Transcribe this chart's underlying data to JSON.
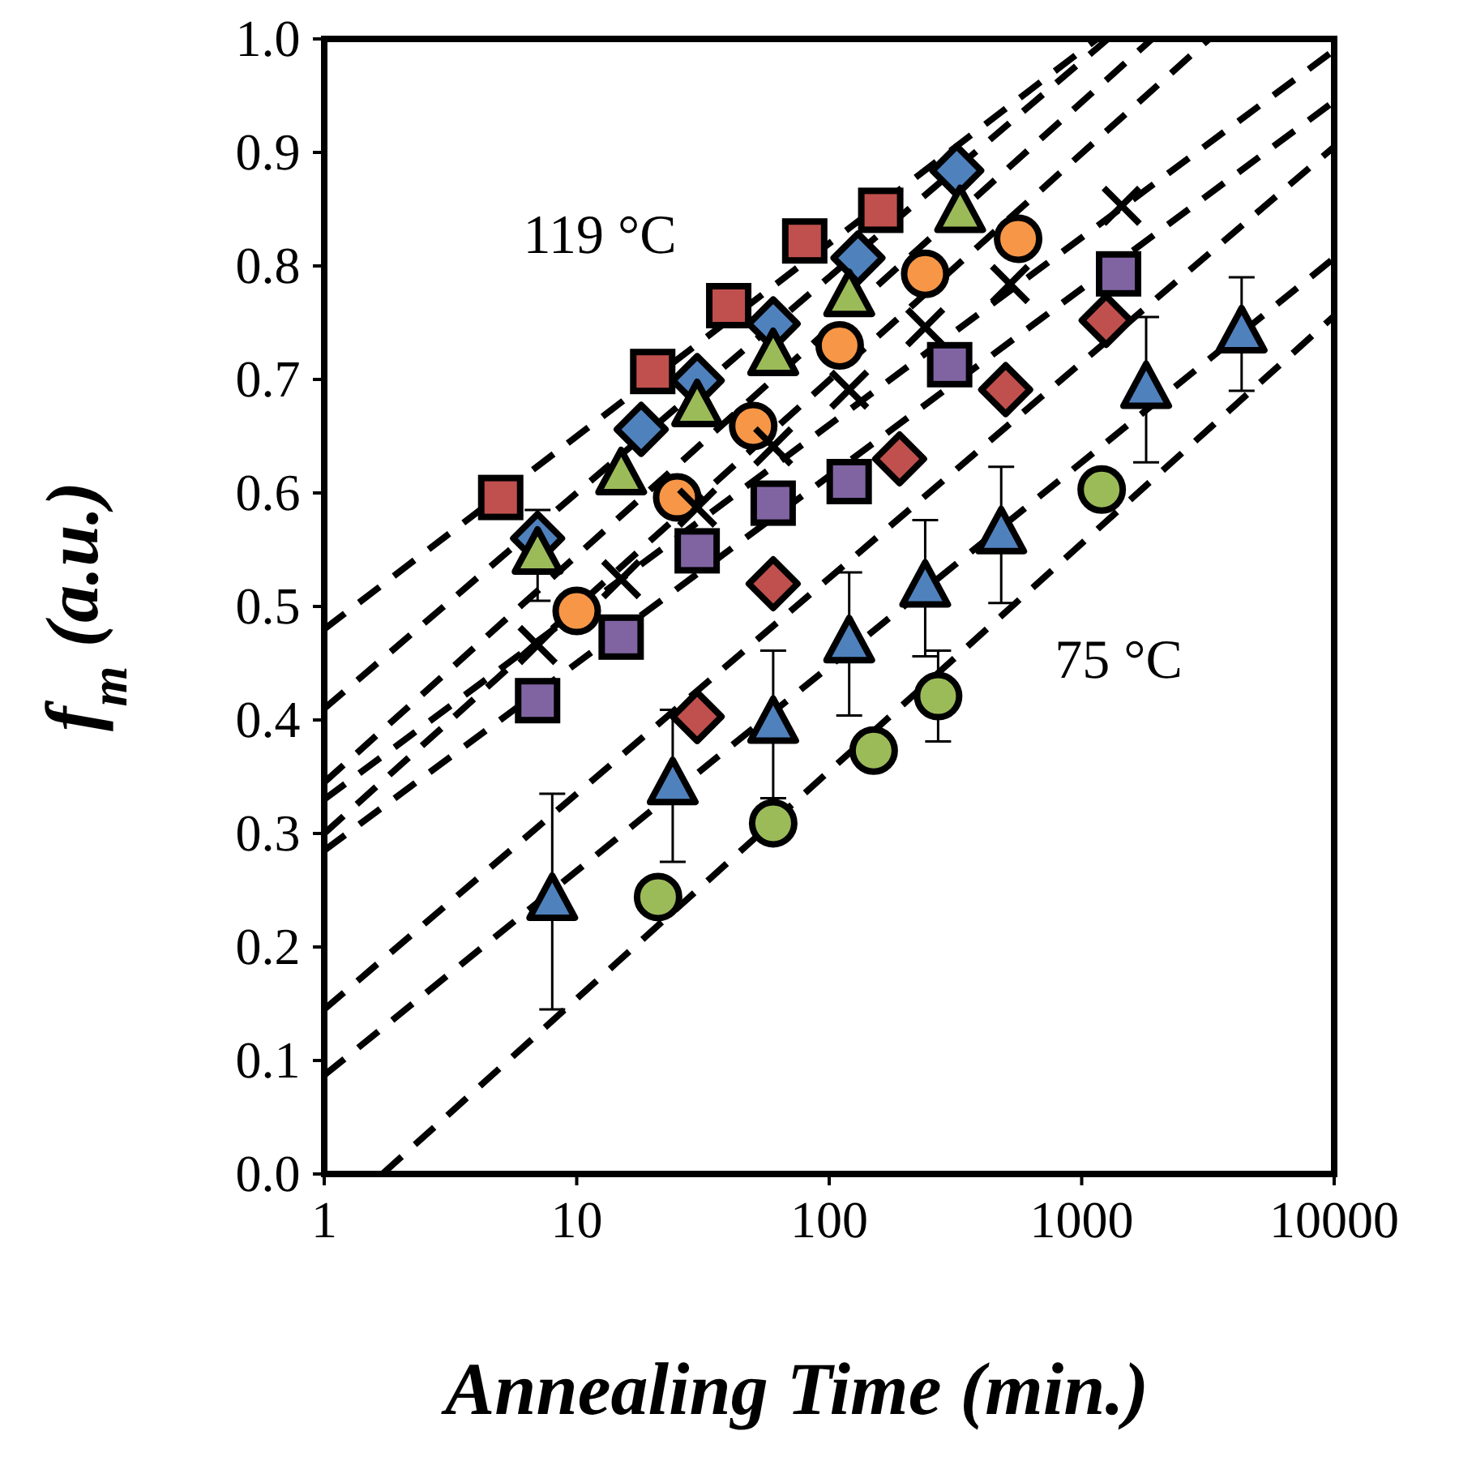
{
  "chart_data": {
    "type": "scatter",
    "xlabel": "Annealing Time (min.)",
    "ylabel": "f$_{m}$ (a.u.)",
    "log": "x",
    "grid": false,
    "xlim": [
      1,
      10000
    ],
    "xticks": [
      1,
      10,
      100,
      1000,
      10000
    ],
    "ylim": [
      0,
      1
    ],
    "yticks": [
      {
        "value": 0,
        "label": "0.0"
      },
      {
        "value": 0.1,
        "label": "0.1"
      },
      {
        "value": 0.2,
        "label": "0.2"
      },
      {
        "value": 0.3,
        "label": "0.3"
      },
      {
        "value": 0.4,
        "label": "0.4"
      },
      {
        "value": 0.5,
        "label": "0.5"
      },
      {
        "value": 0.6,
        "label": "0.6"
      },
      {
        "value": 0.7,
        "label": "0.7"
      },
      {
        "value": 0.8,
        "label": "0.8"
      },
      {
        "value": 0.9,
        "label": "0.9"
      },
      {
        "value": 1,
        "label": "1.0"
      }
    ],
    "annotations": [
      "119 °C",
      "75 °C"
    ],
    "series": [
      {
        "type": "line",
        "color": "#000000",
        "line_style": "dashed",
        "marker": "none",
        "x": [
          1,
          1150
        ],
        "values": [
          0.48,
          1.0
        ]
      },
      {
        "type": "line",
        "color": "#000000",
        "line_style": "dashed",
        "marker": "none",
        "x": [
          1,
          1270
        ],
        "values": [
          0.41,
          1.0
        ]
      },
      {
        "type": "line",
        "color": "#000000",
        "line_style": "dashed",
        "marker": "none",
        "x": [
          1,
          1900
        ],
        "values": [
          0.345,
          1.0
        ]
      },
      {
        "type": "line",
        "color": "#000000",
        "line_style": "dashed",
        "marker": "none",
        "x": [
          1,
          10000
        ],
        "values": [
          0.33,
          0.99
        ]
      },
      {
        "type": "line",
        "color": "#000000",
        "line_style": "dashed",
        "marker": "none",
        "x": [
          1,
          3200
        ],
        "values": [
          0.3,
          1.0
        ]
      },
      {
        "type": "line",
        "color": "#000000",
        "line_style": "dashed",
        "marker": "none",
        "x": [
          1,
          10000
        ],
        "values": [
          0.285,
          0.945
        ]
      },
      {
        "type": "line",
        "color": "#000000",
        "line_style": "dashed",
        "marker": "none",
        "x": [
          1,
          10000
        ],
        "values": [
          0.145,
          0.905
        ]
      },
      {
        "type": "line",
        "color": "#000000",
        "line_style": "dashed",
        "marker": "none",
        "x": [
          1,
          10000
        ],
        "values": [
          0.087,
          0.807
        ]
      },
      {
        "type": "line",
        "color": "#000000",
        "line_style": "dashed",
        "marker": "none",
        "x": [
          1.7,
          10000
        ],
        "values": [
          0,
          0.756
        ]
      },
      {
        "color": "#c0504d",
        "marker": "square",
        "x": [
          5,
          20,
          40,
          80,
          160
        ],
        "values": [
          0.596,
          0.707,
          0.765,
          0.822,
          0.849
        ]
      },
      {
        "color": "#4f81bd",
        "marker": "diamond",
        "x": [
          7,
          18,
          30,
          60,
          130,
          320
        ],
        "values": [
          0.56,
          0.656,
          0.699,
          0.749,
          0.807,
          0.884
        ]
      },
      {
        "color": "#9bbb59",
        "marker": "triangle",
        "x": [
          7,
          15,
          30,
          60,
          120,
          330
        ],
        "values": [
          0.545,
          0.615,
          0.675,
          0.72,
          0.772,
          0.846
        ],
        "errors": [
          0.04,
          null,
          null,
          null,
          null,
          null
        ]
      },
      {
        "color": "#f79646",
        "marker": "circle",
        "x": [
          10,
          25,
          50,
          110,
          240,
          560
        ],
        "values": [
          0.496,
          0.596,
          0.659,
          0.73,
          0.793,
          0.824
        ]
      },
      {
        "color": "#000000",
        "marker": "cross",
        "x": [
          7,
          15,
          30,
          60,
          120,
          240,
          520,
          1440
        ],
        "values": [
          0.466,
          0.524,
          0.587,
          0.641,
          0.691,
          0.746,
          0.784,
          0.853
        ]
      },
      {
        "color": "#8064a2",
        "marker": "square",
        "x": [
          7,
          15,
          30,
          60,
          120,
          300,
          1400
        ],
        "values": [
          0.417,
          0.473,
          0.549,
          0.591,
          0.61,
          0.713,
          0.793
        ]
      },
      {
        "color": "#c0504d",
        "marker": "diamond",
        "x": [
          30,
          60,
          190,
          500,
          1250
        ],
        "values": [
          0.403,
          0.52,
          0.63,
          0.691,
          0.752
        ]
      },
      {
        "color": "#4f81bd",
        "marker": "triangle",
        "x": [
          8,
          24,
          60,
          120,
          240,
          480,
          1800,
          4300
        ],
        "values": [
          0.24,
          0.342,
          0.396,
          0.467,
          0.516,
          0.563,
          0.691,
          0.74
        ],
        "errors": [
          0.095,
          0.067,
          0.065,
          0.063,
          0.06,
          0.06,
          0.064,
          0.05
        ]
      },
      {
        "color": "#9bbb59",
        "marker": "circle",
        "x": [
          21,
          60,
          150,
          270,
          1200
        ],
        "values": [
          0.244,
          0.309,
          0.373,
          0.421,
          0.603
        ],
        "errors": [
          null,
          null,
          null,
          0.04,
          null
        ]
      }
    ]
  }
}
